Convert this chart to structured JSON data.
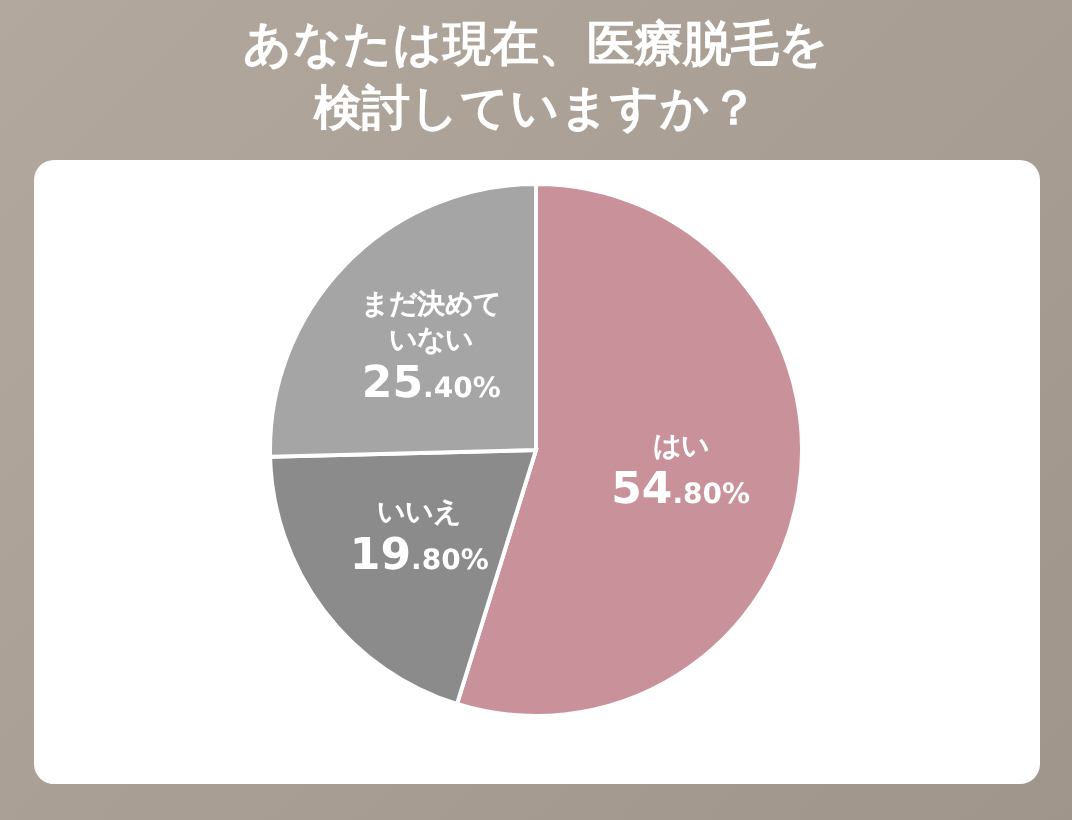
{
  "chart_data": {
    "type": "pie",
    "title": "あなたは現在、医療脱毛を検討していますか？",
    "categories": [
      "はい",
      "いいえ",
      "まだ決めていない"
    ],
    "values": [
      54.8,
      19.8,
      25.4
    ],
    "value_labels": [
      "54.80%",
      "19.80%",
      "25.40%"
    ],
    "colors": [
      "#c9929b",
      "#8b8b8b",
      "#a5a5a5"
    ]
  }
}
